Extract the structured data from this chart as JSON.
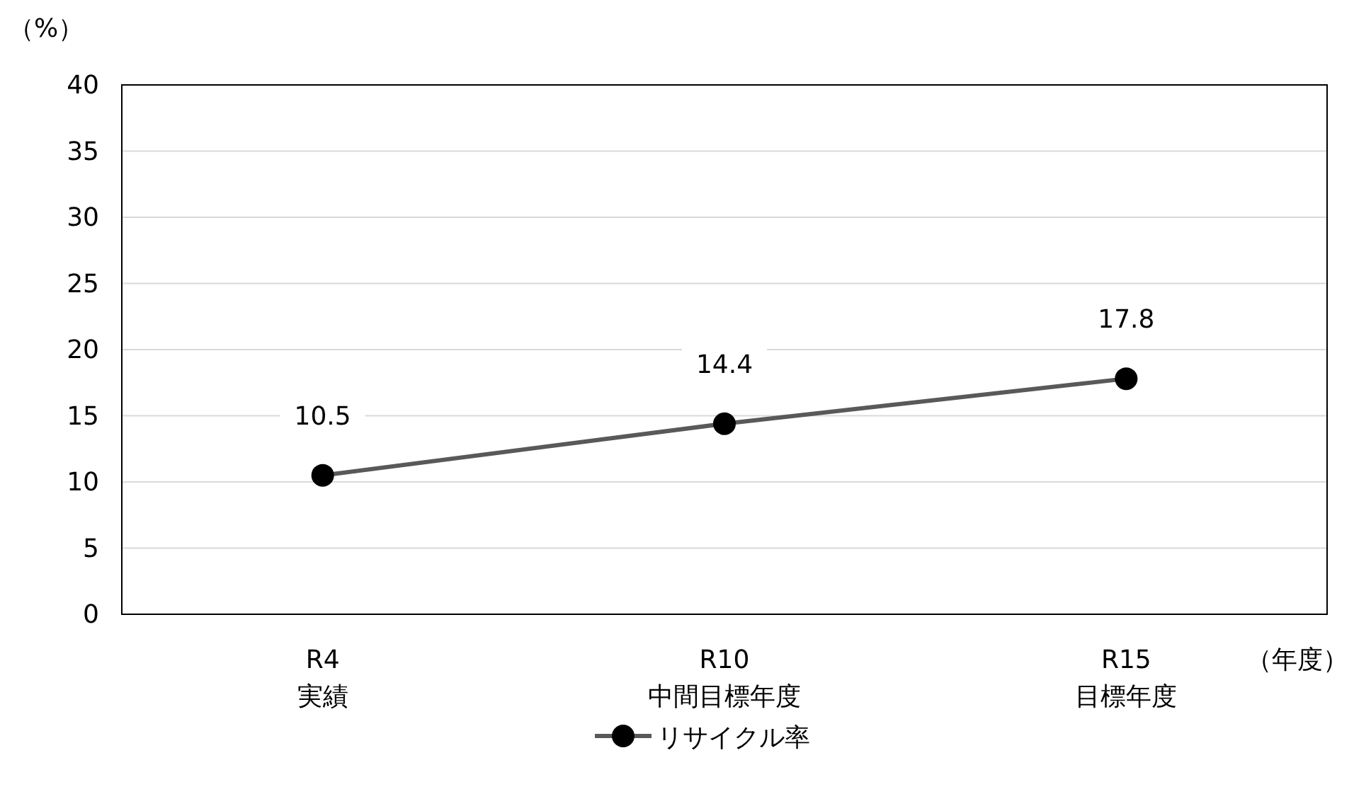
{
  "chart_data": {
    "type": "line",
    "ylabel": "（%）",
    "xlabel": "（年度）",
    "categories": [
      "R4\n実績",
      "R10\n中間目標年度",
      "R15\n目標年度"
    ],
    "series": [
      {
        "name": "リサイクル率",
        "color": "#595959",
        "values": [
          10.5,
          14.4,
          17.8
        ]
      }
    ],
    "ylim": [
      0,
      40
    ],
    "yticks": [
      0,
      5,
      10,
      15,
      20,
      25,
      30,
      35,
      40
    ],
    "grid": "y",
    "legend": "bottom",
    "marker": "circle",
    "data_labels": true
  }
}
